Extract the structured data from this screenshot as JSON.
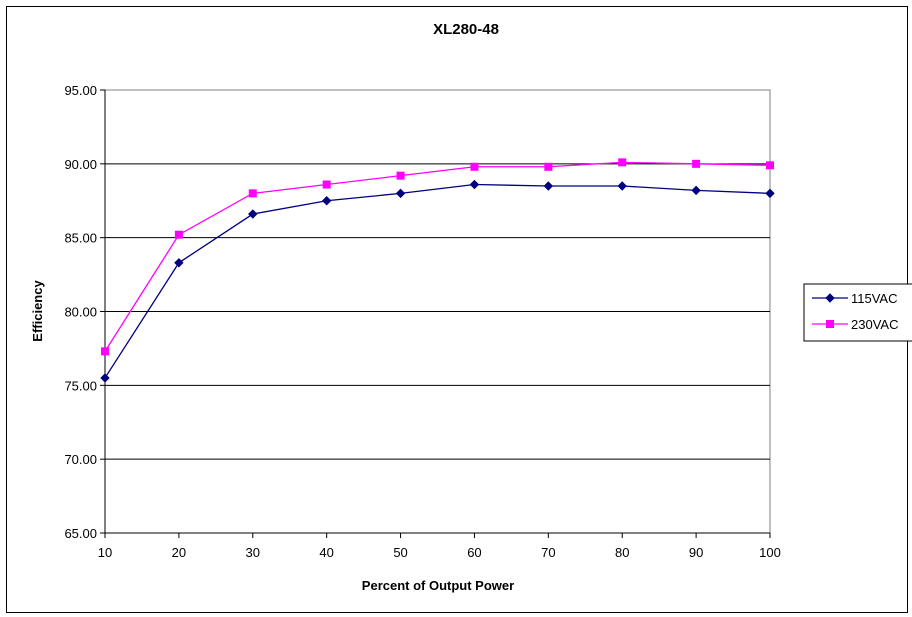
{
  "chart_data": {
    "type": "line",
    "title": "XL280-48",
    "xlabel": "Percent of Output Power",
    "ylabel": "Efficiency",
    "x": [
      10,
      20,
      30,
      40,
      50,
      60,
      70,
      80,
      90,
      100
    ],
    "xlim": [
      10,
      100
    ],
    "ylim": [
      65,
      95
    ],
    "yticks": [
      "65.00",
      "70.00",
      "75.00",
      "80.00",
      "85.00",
      "90.00",
      "95.00"
    ],
    "xticks": [
      "10",
      "20",
      "30",
      "40",
      "50",
      "60",
      "70",
      "80",
      "90",
      "100"
    ],
    "grid": "horizontal",
    "legend_position": "right",
    "series": [
      {
        "name": "115VAC",
        "color": "#000080",
        "marker": "diamond",
        "values": [
          75.5,
          83.3,
          86.6,
          87.5,
          88.0,
          88.6,
          88.5,
          88.5,
          88.2,
          88.0
        ]
      },
      {
        "name": "230VAC",
        "color": "#FF00FF",
        "marker": "square",
        "values": [
          77.3,
          85.2,
          88.0,
          88.6,
          89.2,
          89.8,
          89.8,
          90.1,
          90.0,
          89.9
        ]
      }
    ]
  }
}
